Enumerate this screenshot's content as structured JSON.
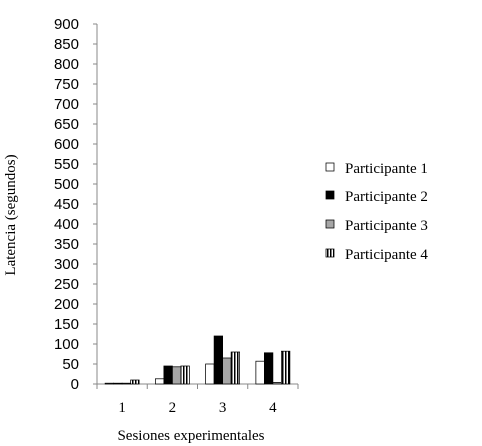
{
  "chart_data": {
    "type": "bar",
    "categories": [
      "1",
      "2",
      "3",
      "4"
    ],
    "series": [
      {
        "name": "Participante 1",
        "values": [
          2,
          13,
          50,
          57
        ],
        "pattern": "white"
      },
      {
        "name": "Participante 2",
        "values": [
          2,
          45,
          120,
          78
        ],
        "pattern": "black"
      },
      {
        "name": "Participante 3",
        "values": [
          2,
          43,
          65,
          4
        ],
        "pattern": "gray"
      },
      {
        "name": "Participante 4",
        "values": [
          10,
          45,
          80,
          82
        ],
        "pattern": "vertical-stripes"
      }
    ],
    "xlabel": "Sesiones experimentales",
    "ylabel": "Latencia (segundos)",
    "ylim": [
      0,
      900
    ],
    "yticks": [
      0,
      50,
      100,
      150,
      200,
      250,
      300,
      350,
      400,
      450,
      500,
      550,
      600,
      650,
      700,
      750,
      800,
      850,
      900
    ],
    "grid": false,
    "legend_position": "right",
    "colors": {
      "black": "#000000",
      "gray": "#a6a6a6",
      "white": "#ffffff",
      "axis": "#888888"
    }
  }
}
